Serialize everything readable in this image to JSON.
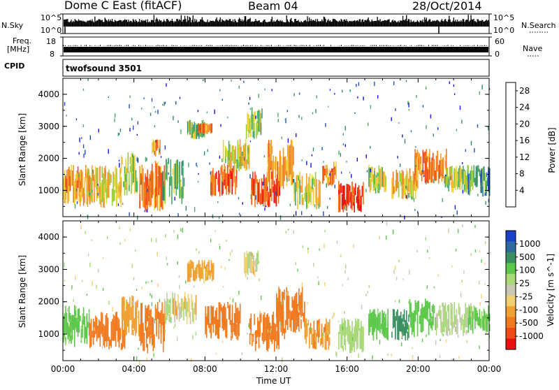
{
  "header": {
    "radar": "Dome C East (fitACF)",
    "beam": "Beam 04",
    "date": "28/Oct/2014"
  },
  "panels_top": {
    "nsky_label": "N.Sky",
    "nsky_ticks": [
      "10^5",
      "10^0"
    ],
    "nsearch_label": "N.Search",
    "nsearch_ticks": [
      "10^5",
      "10^0"
    ],
    "freq_label": "Freq.",
    "freq_unit": "[MHz]",
    "freq_ticks": [
      "18",
      "8"
    ],
    "nave_label": "Nave",
    "nave_ticks": [
      "60",
      "0"
    ],
    "cpid_label": "CPID",
    "cpid_value": "twofsound 3501"
  },
  "colors": {
    "power": [
      "#1414e6",
      "#2050c8",
      "#2e8a6a",
      "#4aa86a",
      "#9cce3c",
      "#f0d23c",
      "#f0a030",
      "#f07a20",
      "#f04a18",
      "#e81010"
    ],
    "velocity": [
      "#e81010",
      "#f04a18",
      "#f07a20",
      "#f0a030",
      "#f0d070",
      "#c8c8b4",
      "#a8d878",
      "#5cc84a",
      "#3a9060",
      "#2e6aa0",
      "#1a40c8"
    ]
  },
  "chart_data": [
    {
      "type": "heatmap",
      "title": "",
      "xlabel": "",
      "ylabel": "Slant Range [km]",
      "x_ticks": [
        "00:00",
        "04:00",
        "08:00",
        "12:00",
        "16:00",
        "20:00",
        "00:00"
      ],
      "xlim_hours": [
        0,
        24
      ],
      "y_ticks": [
        1000,
        2000,
        3000,
        4000
      ],
      "ylim": [
        180,
        4500
      ],
      "colorbar": {
        "label": "Power [dB]",
        "ticks": [
          4,
          8,
          12,
          16,
          20,
          24,
          28
        ],
        "range": [
          0,
          30
        ]
      },
      "echo_regions": [
        {
          "t": [
            0.0,
            1.5
          ],
          "r": [
            500,
            1800
          ],
          "v": 20
        },
        {
          "t": [
            1.3,
            3.3
          ],
          "r": [
            450,
            1800
          ],
          "v": 17
        },
        {
          "t": [
            3.2,
            4.2
          ],
          "r": [
            800,
            2200
          ],
          "v": 14
        },
        {
          "t": [
            4.3,
            5.7
          ],
          "r": [
            300,
            2000
          ],
          "v": 22
        },
        {
          "t": [
            5.0,
            5.5
          ],
          "r": [
            2000,
            2600
          ],
          "v": 20
        },
        {
          "t": [
            5.6,
            6.8
          ],
          "r": [
            500,
            2100
          ],
          "v": 12
        },
        {
          "t": [
            7.0,
            8.0
          ],
          "r": [
            2600,
            3200
          ],
          "v": 12
        },
        {
          "t": [
            7.6,
            8.4
          ],
          "r": [
            2800,
            3100
          ],
          "v": 22
        },
        {
          "t": [
            8.3,
            9.8
          ],
          "r": [
            800,
            1800
          ],
          "v": 24
        },
        {
          "t": [
            9.0,
            10.5
          ],
          "r": [
            1600,
            2600
          ],
          "v": 16
        },
        {
          "t": [
            10.3,
            11.2
          ],
          "r": [
            2600,
            3600
          ],
          "v": 14
        },
        {
          "t": [
            10.6,
            12.2
          ],
          "r": [
            450,
            1600
          ],
          "v": 26
        },
        {
          "t": [
            11.5,
            13.0
          ],
          "r": [
            1000,
            2600
          ],
          "v": 20
        },
        {
          "t": [
            13.0,
            14.5
          ],
          "r": [
            400,
            1600
          ],
          "v": 16
        },
        {
          "t": [
            14.6,
            15.4
          ],
          "r": [
            1100,
            1900
          ],
          "v": 22
        },
        {
          "t": [
            15.5,
            16.9
          ],
          "r": [
            300,
            1300
          ],
          "v": 27
        },
        {
          "t": [
            17.2,
            18.2
          ],
          "r": [
            900,
            1800
          ],
          "v": 14
        },
        {
          "t": [
            18.5,
            20.0
          ],
          "r": [
            700,
            1700
          ],
          "v": 18
        },
        {
          "t": [
            19.8,
            21.6
          ],
          "r": [
            1200,
            2300
          ],
          "v": 22
        },
        {
          "t": [
            21.5,
            23.0
          ],
          "r": [
            900,
            1800
          ],
          "v": 14
        },
        {
          "t": [
            22.8,
            24.0
          ],
          "r": [
            800,
            1800
          ],
          "v": 8
        }
      ]
    },
    {
      "type": "heatmap",
      "title": "",
      "xlabel": "Time UT",
      "ylabel": "Slant Range [km]",
      "x_ticks": [
        "00:00",
        "04:00",
        "08:00",
        "12:00",
        "16:00",
        "20:00",
        "00:00"
      ],
      "xlim_hours": [
        0,
        24
      ],
      "y_ticks": [
        1000,
        2000,
        3000,
        4000
      ],
      "ylim": [
        180,
        4500
      ],
      "colorbar": {
        "label": "Velocity [m s^-1]",
        "ticks": [
          1000,
          500,
          100,
          25,
          -25,
          -100,
          -500,
          -1000
        ],
        "range": [
          -1500,
          1500
        ]
      },
      "echo_regions": [
        {
          "t": [
            0.0,
            1.5
          ],
          "r": [
            600,
            1900
          ],
          "v": 150
        },
        {
          "t": [
            1.5,
            3.5
          ],
          "r": [
            500,
            1700
          ],
          "v": -300
        },
        {
          "t": [
            3.3,
            4.3
          ],
          "r": [
            900,
            2200
          ],
          "v": -60
        },
        {
          "t": [
            4.3,
            5.7
          ],
          "r": [
            400,
            2000
          ],
          "v": -350
        },
        {
          "t": [
            5.7,
            7.5
          ],
          "r": [
            1300,
            2300
          ],
          "v": 0
        },
        {
          "t": [
            7.0,
            8.5
          ],
          "r": [
            2600,
            3300
          ],
          "v": -60
        },
        {
          "t": [
            8.0,
            10.0
          ],
          "r": [
            800,
            2000
          ],
          "v": -300
        },
        {
          "t": [
            10.2,
            11.0
          ],
          "r": [
            2700,
            3600
          ],
          "v": 0
        },
        {
          "t": [
            10.5,
            12.5
          ],
          "r": [
            450,
            1700
          ],
          "v": -350
        },
        {
          "t": [
            12.0,
            13.6
          ],
          "r": [
            1000,
            2500
          ],
          "v": -200
        },
        {
          "t": [
            13.6,
            15.0
          ],
          "r": [
            500,
            1500
          ],
          "v": -80
        },
        {
          "t": [
            15.5,
            16.9
          ],
          "r": [
            400,
            1500
          ],
          "v": 60
        },
        {
          "t": [
            17.2,
            18.3
          ],
          "r": [
            800,
            1800
          ],
          "v": 200
        },
        {
          "t": [
            18.5,
            19.5
          ],
          "r": [
            800,
            1800
          ],
          "v": 700
        },
        {
          "t": [
            19.5,
            21.0
          ],
          "r": [
            900,
            2100
          ],
          "v": 300
        },
        {
          "t": [
            21.0,
            23.0
          ],
          "r": [
            900,
            2000
          ],
          "v": 40
        },
        {
          "t": [
            22.8,
            24.0
          ],
          "r": [
            1000,
            1900
          ],
          "v": 120
        }
      ]
    }
  ]
}
